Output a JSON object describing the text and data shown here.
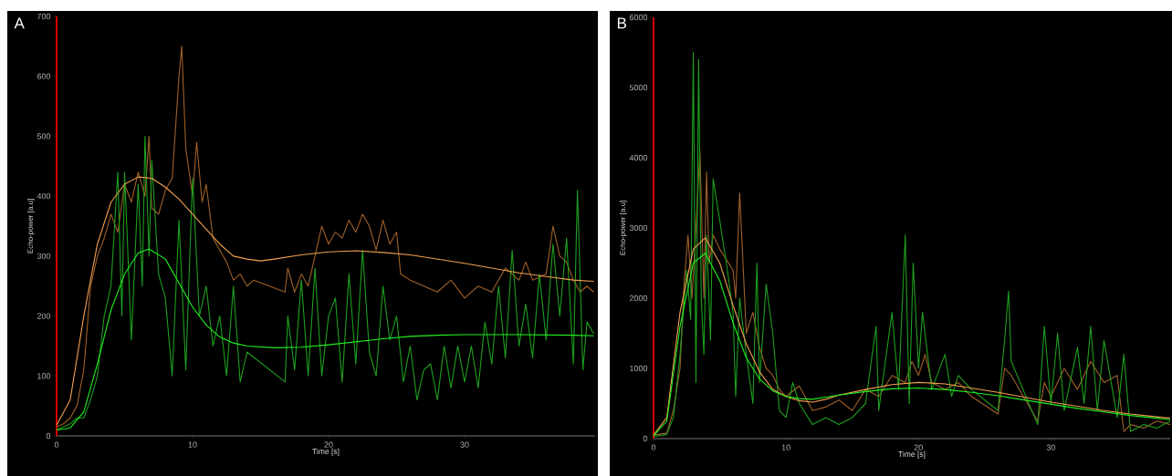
{
  "chart_data": [
    {
      "type": "line",
      "annotations": [
        "A"
      ],
      "xlabel": "Time [s]",
      "ylabel": "Echo-power [a.u]",
      "xlim": [
        0,
        39.6
      ],
      "ylim": [
        0,
        700
      ],
      "xticks": [
        0,
        10,
        20,
        30
      ],
      "yticks": [
        0,
        100,
        200,
        300,
        400,
        500,
        600,
        700
      ],
      "series": [
        {
          "color": "#a0602a",
          "x": [
            0,
            0.5,
            1,
            1.5,
            2,
            2.5,
            3,
            3.5,
            4,
            4.5,
            5,
            5.5,
            6,
            6.5,
            6.8,
            7,
            7.5,
            8,
            8.5,
            9,
            9.2,
            9.5,
            10,
            10.3,
            10.7,
            11,
            11.5,
            12,
            12.5,
            13,
            13.5,
            14,
            14.5,
            16.8,
            17,
            17.5,
            18,
            18.5,
            19,
            19.5,
            20,
            20.5,
            21,
            21.5,
            22,
            22.5,
            23,
            23.5,
            24,
            24.5,
            25,
            25.3,
            26,
            27,
            28,
            29,
            30,
            31,
            32,
            33,
            34,
            34.5,
            35,
            36,
            36.5,
            37,
            37.5,
            38,
            38.5,
            39,
            39.5
          ],
          "values": [
            15,
            20,
            30,
            50,
            110,
            250,
            300,
            330,
            370,
            340,
            420,
            390,
            440,
            400,
            500,
            380,
            370,
            410,
            430,
            600,
            650,
            480,
            400,
            490,
            390,
            420,
            330,
            310,
            290,
            260,
            270,
            250,
            260,
            240,
            280,
            240,
            270,
            250,
            300,
            350,
            320,
            340,
            330,
            360,
            340,
            370,
            350,
            310,
            360,
            320,
            340,
            270,
            260,
            250,
            240,
            260,
            230,
            250,
            240,
            280,
            260,
            290,
            260,
            270,
            350,
            300,
            290,
            260,
            240,
            250,
            240
          ]
        },
        {
          "color": "#1e9e1e",
          "x": [
            0,
            1,
            1.5,
            2,
            2.5,
            3,
            3.5,
            4,
            4.5,
            4.8,
            5,
            5.5,
            6,
            6.3,
            6.5,
            6.8,
            7,
            7.5,
            8,
            8.5,
            9,
            9.5,
            10,
            10.5,
            11,
            11.5,
            12,
            12.5,
            13,
            13.5,
            14,
            16.8,
            17,
            17.5,
            18,
            18.5,
            19,
            19.5,
            20,
            20.5,
            21,
            21.5,
            22,
            22.5,
            23,
            23.5,
            24,
            24.5,
            25,
            25.5,
            26,
            26.5,
            27,
            27.5,
            28,
            28.5,
            29,
            29.5,
            30,
            30.5,
            31,
            31.5,
            32,
            32.5,
            33,
            33.5,
            34,
            34.5,
            35,
            35.5,
            36,
            36.5,
            37,
            37.5,
            38,
            38.3,
            38.7,
            39,
            39.5
          ],
          "values": [
            10,
            20,
            30,
            30,
            60,
            100,
            200,
            250,
            440,
            200,
            440,
            160,
            420,
            250,
            500,
            300,
            460,
            270,
            230,
            100,
            360,
            110,
            430,
            200,
            250,
            150,
            200,
            100,
            250,
            90,
            140,
            90,
            200,
            110,
            260,
            100,
            280,
            100,
            200,
            230,
            90,
            270,
            120,
            310,
            140,
            100,
            250,
            160,
            200,
            90,
            150,
            60,
            110,
            120,
            60,
            150,
            80,
            150,
            90,
            150,
            80,
            190,
            120,
            250,
            130,
            310,
            150,
            220,
            130,
            270,
            160,
            320,
            200,
            330,
            120,
            410,
            110,
            190,
            170
          ]
        },
        {
          "color": "#f0a050",
          "x": [
            0,
            1,
            2,
            3,
            4,
            5,
            6,
            7,
            8,
            9,
            10,
            11,
            12,
            13,
            14,
            15,
            16,
            18,
            20,
            22,
            24,
            26,
            28,
            30,
            32,
            34,
            36,
            38,
            39.5
          ],
          "values": [
            18,
            60,
            200,
            320,
            390,
            420,
            432,
            430,
            415,
            395,
            370,
            345,
            320,
            300,
            295,
            292,
            295,
            302,
            307,
            309,
            306,
            302,
            295,
            288,
            280,
            272,
            266,
            260,
            258
          ]
        },
        {
          "color": "#20f020",
          "x": [
            0,
            1,
            2,
            3,
            4,
            5,
            6,
            6.8,
            8,
            9,
            10,
            11,
            12,
            13,
            14,
            16,
            18,
            20,
            22,
            24,
            26,
            28,
            30,
            34,
            38,
            39.5
          ],
          "values": [
            10,
            13,
            40,
            120,
            210,
            270,
            305,
            312,
            295,
            255,
            215,
            185,
            165,
            155,
            150,
            147,
            148,
            152,
            157,
            162,
            166,
            168,
            169,
            169,
            168,
            167
          ]
        }
      ]
    },
    {
      "type": "line",
      "annotations": [
        "B"
      ],
      "xlabel": "Time [s]",
      "ylabel": "Echo-power [a.u]",
      "xlim": [
        0,
        39
      ],
      "ylim": [
        0,
        6000
      ],
      "xticks": [
        0,
        10,
        20,
        30
      ],
      "yticks": [
        0,
        1000,
        2000,
        3000,
        4000,
        5000,
        6000
      ],
      "series": [
        {
          "color": "#a0602a",
          "x": [
            0,
            1,
            1.5,
            2,
            2.3,
            2.6,
            2.9,
            3.2,
            3.5,
            3.8,
            4,
            4.2,
            4.5,
            5,
            6,
            6.2,
            6.5,
            7,
            7.5,
            8,
            8.5,
            9,
            9.5,
            10,
            11,
            12,
            13,
            14,
            15,
            16,
            17,
            18,
            19,
            19.5,
            20,
            20.5,
            21,
            22,
            23,
            24,
            26,
            26.5,
            27,
            29,
            29.5,
            30,
            31,
            32,
            33,
            34,
            35,
            35.5,
            36,
            37,
            38,
            39
          ],
          "values": [
            50,
            80,
            400,
            1000,
            2200,
            2900,
            2000,
            3000,
            4100,
            2000,
            3800,
            2500,
            2900,
            2700,
            2400,
            2000,
            3500,
            1500,
            1800,
            1300,
            1000,
            900,
            700,
            600,
            750,
            400,
            450,
            550,
            400,
            700,
            600,
            900,
            800,
            1100,
            900,
            1200,
            800,
            700,
            800,
            600,
            350,
            1000,
            900,
            250,
            800,
            600,
            1000,
            700,
            1100,
            800,
            900,
            100,
            200,
            150,
            250,
            200
          ]
        },
        {
          "color": "#1e9e1e",
          "x": [
            0,
            1,
            1.5,
            2,
            2.5,
            2.8,
            3,
            3.2,
            3.4,
            3.6,
            3.8,
            4,
            4.3,
            4.5,
            5.5,
            6,
            6.2,
            6.5,
            7,
            7.5,
            7.8,
            8,
            8.5,
            9,
            9.5,
            10,
            10.5,
            11,
            12,
            13,
            14,
            15,
            16,
            16.8,
            17,
            18,
            18.5,
            19,
            19.3,
            19.6,
            20,
            20.3,
            21,
            22,
            22.5,
            23,
            24,
            26,
            26.5,
            26.8,
            27,
            29,
            29.5,
            30,
            30.5,
            31,
            32,
            32.5,
            33,
            33.5,
            34,
            35,
            35.5,
            36,
            37,
            38,
            39
          ],
          "values": [
            30,
            60,
            300,
            1200,
            2400,
            1700,
            5500,
            800,
            5400,
            2000,
            1200,
            2900,
            1400,
            3700,
            2500,
            1800,
            600,
            2000,
            1200,
            500,
            2500,
            800,
            2200,
            1500,
            400,
            300,
            800,
            500,
            200,
            300,
            200,
            300,
            500,
            1600,
            400,
            1800,
            700,
            2900,
            500,
            2500,
            1000,
            1800,
            700,
            1200,
            600,
            900,
            700,
            400,
            1400,
            2100,
            1100,
            200,
            1600,
            500,
            1500,
            400,
            1300,
            500,
            1600,
            400,
            1400,
            300,
            1200,
            100,
            200,
            150,
            250
          ]
        },
        {
          "color": "#f0a050",
          "x": [
            0,
            1,
            2,
            3,
            3.9,
            5,
            6,
            7,
            8,
            9,
            10,
            11,
            12,
            13,
            14,
            16,
            18,
            20,
            22,
            24,
            26,
            28,
            30,
            32,
            34,
            36,
            38,
            39
          ],
          "values": [
            50,
            300,
            1800,
            2700,
            2860,
            2500,
            1900,
            1350,
            950,
            700,
            600,
            540,
            520,
            560,
            620,
            700,
            770,
            800,
            780,
            720,
            660,
            590,
            520,
            460,
            400,
            350,
            310,
            290
          ]
        },
        {
          "color": "#20f020",
          "x": [
            0,
            1,
            2,
            3,
            3.9,
            5,
            6,
            7,
            8,
            9,
            10,
            11,
            12,
            13,
            14,
            16,
            18,
            20,
            22,
            24,
            26,
            28,
            30,
            32,
            34,
            36,
            38,
            39
          ],
          "values": [
            40,
            250,
            1600,
            2500,
            2640,
            2250,
            1650,
            1150,
            850,
            680,
            600,
            570,
            560,
            590,
            620,
            670,
            710,
            720,
            700,
            660,
            610,
            550,
            490,
            430,
            380,
            330,
            290,
            270
          ]
        }
      ]
    }
  ]
}
